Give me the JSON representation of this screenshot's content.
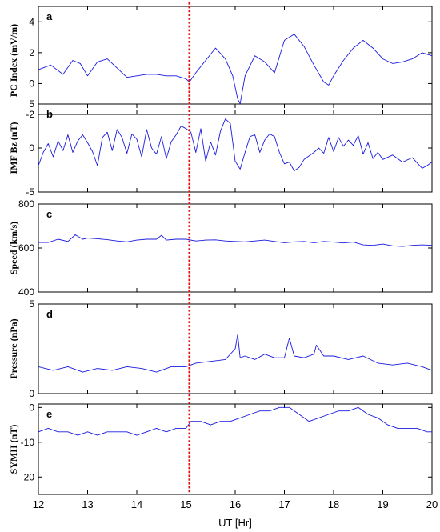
{
  "chart_data": {
    "type": "line",
    "xlabel": "UT [Hr]",
    "xlim": [
      12,
      20
    ],
    "xticks": [
      12,
      13,
      14,
      15,
      16,
      17,
      18,
      19,
      20
    ],
    "marker_x": 15.07,
    "marker_color": "#e01010",
    "series_color": "#1a1adf",
    "panels": [
      {
        "letter": "a",
        "ylabel": "PC Index (mV/m)",
        "ylim": [
          -2,
          5
        ],
        "yticks": [
          -2,
          0,
          2,
          4
        ],
        "x": [
          12.0,
          12.25,
          12.5,
          12.7,
          12.85,
          13.0,
          13.2,
          13.4,
          13.6,
          13.8,
          14.0,
          14.2,
          14.4,
          14.6,
          14.8,
          15.0,
          15.07,
          15.2,
          15.4,
          15.6,
          15.8,
          15.95,
          16.05,
          16.1,
          16.2,
          16.4,
          16.6,
          16.8,
          17.0,
          17.2,
          17.4,
          17.6,
          17.8,
          17.9,
          18.0,
          18.2,
          18.4,
          18.6,
          18.8,
          19.0,
          19.2,
          19.4,
          19.6,
          19.8,
          20.0
        ],
        "y": [
          0.9,
          1.2,
          0.6,
          1.5,
          1.3,
          0.5,
          1.4,
          1.6,
          1.0,
          0.4,
          0.5,
          0.6,
          0.6,
          0.5,
          0.5,
          0.3,
          0.1,
          0.7,
          1.5,
          2.3,
          1.6,
          0.5,
          -1.0,
          -1.3,
          0.5,
          1.8,
          1.4,
          0.7,
          2.8,
          3.2,
          2.4,
          1.2,
          0.1,
          -0.1,
          0.5,
          1.5,
          2.3,
          2.8,
          2.3,
          1.6,
          1.3,
          1.4,
          1.6,
          2.0,
          1.8
        ]
      },
      {
        "letter": "b",
        "ylabel": "IMF Bz (nT)",
        "ylim": [
          -5,
          5
        ],
        "yticks": [
          -5,
          0,
          5
        ],
        "x": [
          12.0,
          12.1,
          12.2,
          12.3,
          12.4,
          12.5,
          12.6,
          12.7,
          12.8,
          12.9,
          13.0,
          13.1,
          13.2,
          13.3,
          13.4,
          13.5,
          13.6,
          13.7,
          13.8,
          13.9,
          14.0,
          14.1,
          14.2,
          14.3,
          14.4,
          14.5,
          14.6,
          14.7,
          14.8,
          14.9,
          15.0,
          15.1,
          15.2,
          15.3,
          15.4,
          15.5,
          15.6,
          15.7,
          15.8,
          15.9,
          16.0,
          16.1,
          16.2,
          16.3,
          16.4,
          16.5,
          16.6,
          16.7,
          16.8,
          16.9,
          17.0,
          17.1,
          17.2,
          17.3,
          17.4,
          17.5,
          17.6,
          17.7,
          17.8,
          17.9,
          18.0,
          18.1,
          18.2,
          18.3,
          18.4,
          18.5,
          18.6,
          18.7,
          18.8,
          18.9,
          19.0,
          19.2,
          19.4,
          19.6,
          19.8,
          19.9,
          20.0
        ],
        "y": [
          -2.0,
          -0.5,
          0.5,
          -1.0,
          0.8,
          -0.3,
          1.5,
          -0.5,
          0.8,
          1.5,
          0.6,
          -0.4,
          -2.0,
          1.2,
          1.8,
          -0.3,
          2.1,
          1.2,
          -0.6,
          1.6,
          1.0,
          -1.0,
          2.1,
          0.0,
          -0.7,
          1.3,
          -1.2,
          0.7,
          1.5,
          2.5,
          2.2,
          1.8,
          -0.5,
          2.2,
          -1.5,
          0.7,
          -0.8,
          1.9,
          3.3,
          2.8,
          -1.5,
          -2.4,
          -0.5,
          1.3,
          1.5,
          -0.5,
          0.9,
          1.6,
          1.3,
          -0.5,
          -1.8,
          -1.6,
          -2.6,
          -2.2,
          -1.3,
          -0.9,
          -0.5,
          0.0,
          -0.6,
          1.2,
          -0.4,
          1.2,
          0.2,
          0.9,
          0.3,
          1.4,
          -0.7,
          0.6,
          -1.2,
          -0.5,
          -1.3,
          -0.8,
          -1.6,
          -1.1,
          -2.3,
          -2.0,
          -1.6
        ]
      },
      {
        "letter": "c",
        "ylabel": "Speed (km/s)",
        "ylim": [
          400,
          800
        ],
        "yticks": [
          400,
          600,
          800
        ],
        "x": [
          12.0,
          12.2,
          12.4,
          12.6,
          12.75,
          12.9,
          13.0,
          13.2,
          13.4,
          13.6,
          13.8,
          14.0,
          14.2,
          14.4,
          14.5,
          14.6,
          14.8,
          15.0,
          15.2,
          15.4,
          15.6,
          15.8,
          16.0,
          16.2,
          16.4,
          16.6,
          16.8,
          17.0,
          17.2,
          17.4,
          17.6,
          17.8,
          18.0,
          18.2,
          18.4,
          18.6,
          18.8,
          19.0,
          19.2,
          19.4,
          19.6,
          19.8,
          20.0
        ],
        "y": [
          625,
          625,
          640,
          630,
          660,
          640,
          645,
          642,
          638,
          632,
          628,
          636,
          640,
          640,
          658,
          636,
          640,
          640,
          632,
          636,
          637,
          632,
          630,
          628,
          632,
          636,
          630,
          624,
          628,
          630,
          624,
          630,
          627,
          623,
          627,
          614,
          612,
          618,
          610,
          607,
          612,
          614,
          612
        ]
      },
      {
        "letter": "d",
        "ylabel": "Pressure (nPa)",
        "ylim": [
          0,
          5
        ],
        "yticks": [
          0,
          5
        ],
        "x": [
          12.0,
          12.3,
          12.6,
          12.9,
          13.2,
          13.5,
          13.8,
          14.1,
          14.4,
          14.7,
          15.0,
          15.2,
          15.5,
          15.8,
          16.0,
          16.05,
          16.1,
          16.2,
          16.4,
          16.6,
          16.8,
          17.0,
          17.1,
          17.2,
          17.4,
          17.6,
          17.65,
          17.8,
          18.0,
          18.3,
          18.6,
          18.9,
          19.2,
          19.5,
          19.8,
          20.0
        ],
        "y": [
          1.5,
          1.3,
          1.5,
          1.2,
          1.4,
          1.3,
          1.5,
          1.4,
          1.2,
          1.5,
          1.5,
          1.7,
          1.8,
          1.9,
          2.5,
          3.3,
          2.0,
          2.1,
          1.9,
          2.2,
          2.0,
          2.0,
          3.1,
          2.1,
          2.0,
          2.2,
          2.7,
          2.1,
          2.1,
          1.9,
          2.1,
          1.7,
          1.6,
          1.7,
          1.5,
          1.3
        ]
      },
      {
        "letter": "e",
        "ylabel": "SYMH (nT)",
        "ylim": [
          -25,
          1
        ],
        "yticks": [
          -20,
          -10,
          0
        ],
        "x": [
          12.0,
          12.2,
          12.4,
          12.6,
          12.8,
          13.0,
          13.2,
          13.4,
          13.6,
          13.8,
          14.0,
          14.2,
          14.4,
          14.6,
          14.8,
          15.0,
          15.1,
          15.3,
          15.5,
          15.7,
          15.9,
          16.1,
          16.3,
          16.5,
          16.7,
          16.9,
          17.1,
          17.3,
          17.5,
          17.7,
          17.9,
          18.1,
          18.3,
          18.5,
          18.7,
          18.9,
          19.1,
          19.3,
          19.5,
          19.7,
          19.9,
          20.0
        ],
        "y": [
          -7,
          -6,
          -7,
          -7,
          -8,
          -7,
          -8,
          -7,
          -7,
          -7,
          -8,
          -7,
          -6,
          -7,
          -6,
          -6,
          -4,
          -4,
          -5,
          -4,
          -4,
          -3,
          -2,
          -1,
          -1,
          0,
          0,
          -2,
          -4,
          -3,
          -2,
          -1,
          -1,
          0,
          -2,
          -3,
          -5,
          -6,
          -6,
          -6,
          -7,
          -7
        ]
      }
    ]
  }
}
